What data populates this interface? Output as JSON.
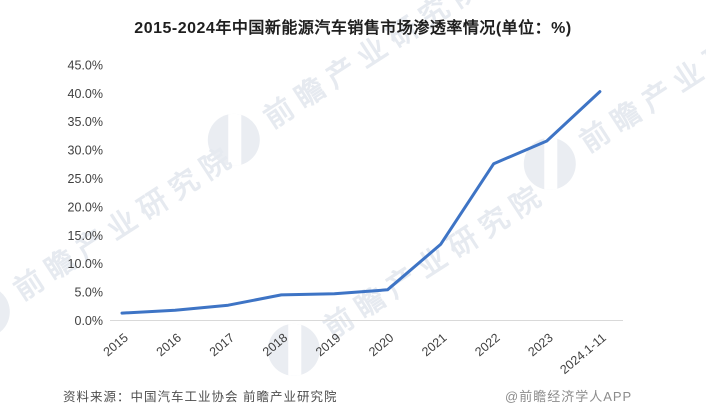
{
  "title": "2015-2024年中国新能源汽车销售市场渗透率情况(单位：%)",
  "chart_data": {
    "type": "line",
    "title": "2015-2024年中国新能源汽车销售市场渗透率情况(单位：%)",
    "categories": [
      "2015",
      "2016",
      "2017",
      "2018",
      "2019",
      "2020",
      "2021",
      "2022",
      "2023",
      "2024.1-11"
    ],
    "series": [
      {
        "name": "新能源汽车销售市场渗透率",
        "values": [
          1.3,
          1.8,
          2.7,
          4.5,
          4.7,
          5.4,
          13.4,
          27.6,
          31.6,
          40.3
        ]
      }
    ],
    "xlabel": "",
    "ylabel": "",
    "ylim": [
      0,
      45
    ],
    "ytick_step": 5,
    "ytick_suffix": "%",
    "ytick_decimals": 1,
    "grid": false,
    "legend": "none",
    "line_color": "#3E74C5",
    "axis_color": "#D9D9D9",
    "tick_color": "#404040"
  },
  "footer": {
    "source": "资料来源：中国汽车工业协会 前瞻产业研究院",
    "credit": "@前瞻经济学人APP"
  },
  "watermark": {
    "text": "前瞻产业研究院",
    "logo": "qianzhan-logo"
  }
}
